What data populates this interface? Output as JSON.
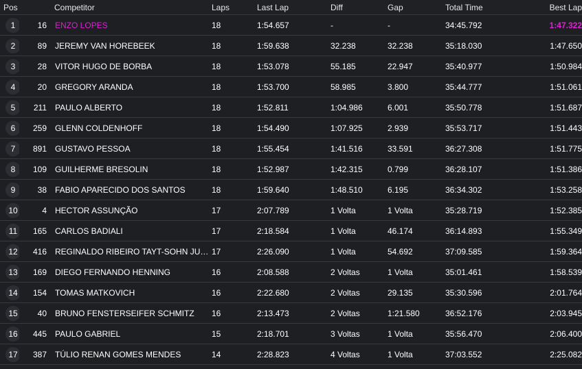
{
  "columns": {
    "pos": "Pos",
    "competitor": "Competitor",
    "laps": "Laps",
    "last_lap": "Last Lap",
    "diff": "Diff",
    "gap": "Gap",
    "total_time": "Total Time",
    "best_lap": "Best Lap"
  },
  "colors": {
    "background": "#202124",
    "highlight": "#e01fd8",
    "row_border": "#3a3a3e"
  },
  "rows": [
    {
      "pos": "1",
      "number": "16",
      "name": "ENZO LOPES",
      "laps": "18",
      "last_lap": "1:54.657",
      "diff": "-",
      "gap": "-",
      "total_time": "34:45.792",
      "best_lap": "1:47.322"
    },
    {
      "pos": "2",
      "number": "89",
      "name": "JEREMY VAN HOREBEEK",
      "laps": "18",
      "last_lap": "1:59.638",
      "diff": "32.238",
      "gap": "32.238",
      "total_time": "35:18.030",
      "best_lap": "1:47.650"
    },
    {
      "pos": "3",
      "number": "28",
      "name": "VITOR HUGO DE BORBA",
      "laps": "18",
      "last_lap": "1:53.078",
      "diff": "55.185",
      "gap": "22.947",
      "total_time": "35:40.977",
      "best_lap": "1:50.984"
    },
    {
      "pos": "4",
      "number": "20",
      "name": "GREGORY ARANDA",
      "laps": "18",
      "last_lap": "1:53.700",
      "diff": "58.985",
      "gap": "3.800",
      "total_time": "35:44.777",
      "best_lap": "1:51.061"
    },
    {
      "pos": "5",
      "number": "211",
      "name": "PAULO ALBERTO",
      "laps": "18",
      "last_lap": "1:52.811",
      "diff": "1:04.986",
      "gap": "6.001",
      "total_time": "35:50.778",
      "best_lap": "1:51.687"
    },
    {
      "pos": "6",
      "number": "259",
      "name": "GLENN COLDENHOFF",
      "laps": "18",
      "last_lap": "1:54.490",
      "diff": "1:07.925",
      "gap": "2.939",
      "total_time": "35:53.717",
      "best_lap": "1:51.443"
    },
    {
      "pos": "7",
      "number": "891",
      "name": "GUSTAVO PESSOA",
      "laps": "18",
      "last_lap": "1:55.454",
      "diff": "1:41.516",
      "gap": "33.591",
      "total_time": "36:27.308",
      "best_lap": "1:51.775"
    },
    {
      "pos": "8",
      "number": "109",
      "name": "GUILHERME BRESOLIN",
      "laps": "18",
      "last_lap": "1:52.987",
      "diff": "1:42.315",
      "gap": "0.799",
      "total_time": "36:28.107",
      "best_lap": "1:51.386"
    },
    {
      "pos": "9",
      "number": "38",
      "name": "FABIO APARECIDO DOS SANTOS",
      "laps": "18",
      "last_lap": "1:59.640",
      "diff": "1:48.510",
      "gap": "6.195",
      "total_time": "36:34.302",
      "best_lap": "1:53.258"
    },
    {
      "pos": "10",
      "number": "4",
      "name": "HECTOR ASSUNÇÃO",
      "laps": "17",
      "last_lap": "2:07.789",
      "diff": "1 Volta",
      "gap": "1 Volta",
      "total_time": "35:28.719",
      "best_lap": "1:52.385"
    },
    {
      "pos": "11",
      "number": "165",
      "name": "CARLOS BADIALI",
      "laps": "17",
      "last_lap": "2:18.584",
      "diff": "1 Volta",
      "gap": "46.174",
      "total_time": "36:14.893",
      "best_lap": "1:55.349"
    },
    {
      "pos": "12",
      "number": "416",
      "name": "REGINALDO RIBEIRO TAYT-SOHN JUNIOR",
      "laps": "17",
      "last_lap": "2:26.090",
      "diff": "1 Volta",
      "gap": "54.692",
      "total_time": "37:09.585",
      "best_lap": "1:59.364"
    },
    {
      "pos": "13",
      "number": "169",
      "name": "DIEGO FERNANDO HENNING",
      "laps": "16",
      "last_lap": "2:08.588",
      "diff": "2 Voltas",
      "gap": "1 Volta",
      "total_time": "35:01.461",
      "best_lap": "1:58.539"
    },
    {
      "pos": "14",
      "number": "154",
      "name": "TOMAS MATKOVICH",
      "laps": "16",
      "last_lap": "2:22.680",
      "diff": "2 Voltas",
      "gap": "29.135",
      "total_time": "35:30.596",
      "best_lap": "2:01.764"
    },
    {
      "pos": "15",
      "number": "40",
      "name": "BRUNO FENSTERSEIFER SCHMITZ",
      "laps": "16",
      "last_lap": "2:13.473",
      "diff": "2 Voltas",
      "gap": "1:21.580",
      "total_time": "36:52.176",
      "best_lap": "2:03.945"
    },
    {
      "pos": "16",
      "number": "445",
      "name": "PAULO GABRIEL",
      "laps": "15",
      "last_lap": "2:18.701",
      "diff": "3 Voltas",
      "gap": "1 Volta",
      "total_time": "35:56.470",
      "best_lap": "2:06.400"
    },
    {
      "pos": "17",
      "number": "387",
      "name": "TÚLIO RENAN GOMES MENDES",
      "laps": "14",
      "last_lap": "2:28.823",
      "diff": "4 Voltas",
      "gap": "1 Volta",
      "total_time": "37:03.552",
      "best_lap": "2:25.082"
    }
  ]
}
